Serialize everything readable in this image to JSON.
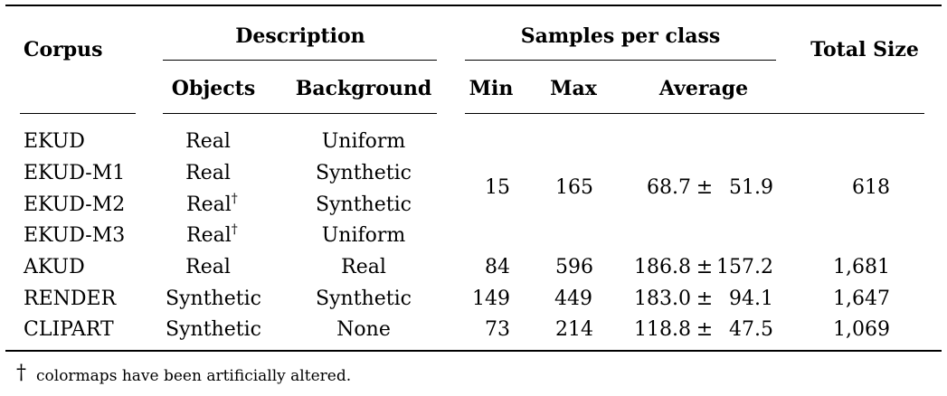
{
  "table": {
    "headers": {
      "corpus": "Corpus",
      "description": "Description",
      "samples_per_class": "Samples per class",
      "total_size": "Total Size",
      "objects": "Objects",
      "background": "Background",
      "min": "Min",
      "max": "Max",
      "average": "Average"
    },
    "rows": [
      {
        "corpus": "EKUD",
        "objects": "Real",
        "objects_mark": "",
        "background": "Uniform"
      },
      {
        "corpus": "EKUD-M1",
        "objects": "Real",
        "objects_mark": "",
        "background": "Synthetic"
      },
      {
        "corpus": "EKUD-M2",
        "objects": "Real",
        "objects_mark": "†",
        "background": "Synthetic"
      },
      {
        "corpus": "EKUD-M3",
        "objects": "Real",
        "objects_mark": "†",
        "background": "Uniform"
      },
      {
        "corpus": "AKUD",
        "objects": "Real",
        "objects_mark": "",
        "background": "Real"
      },
      {
        "corpus": "RENDER",
        "objects": "Synthetic",
        "objects_mark": "",
        "background": "Synthetic"
      },
      {
        "corpus": "CLIPART",
        "objects": "Synthetic",
        "objects_mark": "",
        "background": "None"
      }
    ],
    "merged_ekud_stats": {
      "min": "15",
      "max": "165",
      "avg_mean": "68.7",
      "pm": "±",
      "avg_sd": "51.9",
      "total": "618"
    },
    "stats": [
      {
        "min": "84",
        "max": "596",
        "avg_mean": "186.8",
        "pm": "±",
        "avg_sd": "157.2",
        "total": "1,681"
      },
      {
        "min": "149",
        "max": "449",
        "avg_mean": "183.0",
        "pm": "±",
        "avg_sd": "94.1",
        "total": "1,647"
      },
      {
        "min": "73",
        "max": "214",
        "avg_mean": "118.8",
        "pm": "±",
        "avg_sd": "47.5",
        "total": "1,069"
      }
    ]
  },
  "footnote": {
    "mark": "†",
    "text": "colormaps have been artificially altered."
  }
}
